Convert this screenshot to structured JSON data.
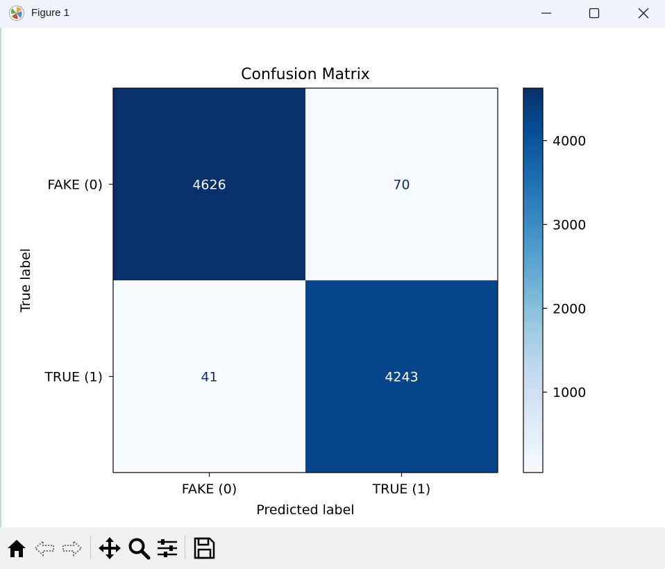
{
  "window": {
    "title": "Figure 1",
    "icon": "matplotlib-logo-icon",
    "controls": [
      "minimize-icon",
      "maximize-icon",
      "close-icon"
    ]
  },
  "toolbar": {
    "buttons": [
      {
        "name": "home",
        "icon": "home-icon"
      },
      {
        "name": "back",
        "icon": "back-arrow-icon"
      },
      {
        "name": "forward",
        "icon": "forward-arrow-icon"
      },
      {
        "name": "pan",
        "icon": "move-arrows-icon"
      },
      {
        "name": "zoom",
        "icon": "magnifier-icon"
      },
      {
        "name": "configure-subplots",
        "icon": "sliders-icon"
      },
      {
        "name": "save",
        "icon": "floppy-disk-icon"
      }
    ]
  },
  "chart_data": {
    "type": "heatmap",
    "title": "Confusion Matrix",
    "xlabel": "Predicted label",
    "ylabel": "True label",
    "x_categories": [
      "FAKE (0)",
      "TRUE (1)"
    ],
    "y_categories": [
      "FAKE (0)",
      "TRUE (1)"
    ],
    "matrix": [
      [
        4626,
        70
      ],
      [
        41,
        4243
      ]
    ],
    "colormap": "Blues",
    "colorbar": {
      "min": 41,
      "max": 4626,
      "ticks": [
        1000,
        2000,
        3000,
        4000
      ]
    },
    "cell_text_color_dark": "#08306b",
    "cell_text_color_light": "#ffffff"
  }
}
